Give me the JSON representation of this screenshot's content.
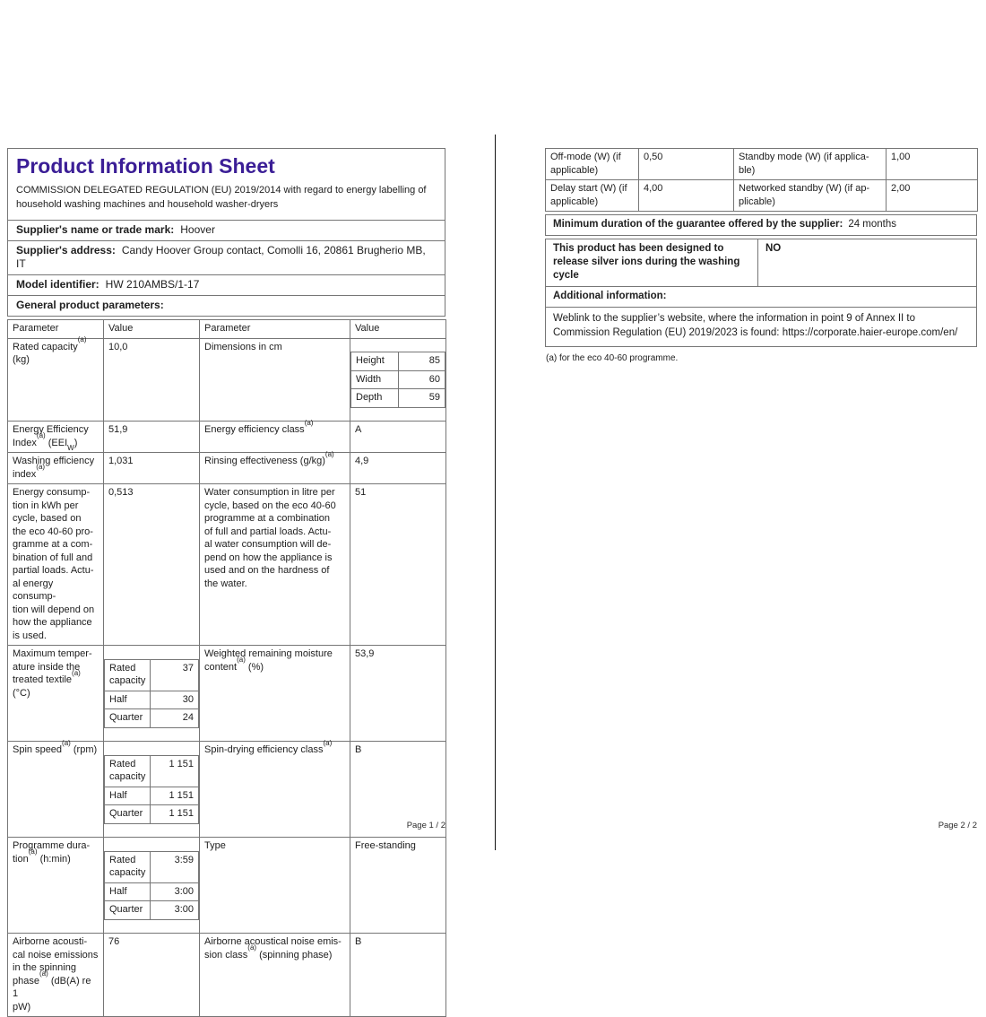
{
  "colors": {
    "title_accent": "#3b1e96",
    "table_border": "#767676",
    "sub_border": "#b0b0b0",
    "text": "#202020"
  },
  "page1": {
    "title": "Product Information Sheet",
    "regulation": [
      "COMMISSION DELEGATED REGULATION (EU) 2019/2014 with regard to energy labelling of",
      "household washing machines and household washer-dryers"
    ],
    "fields": {
      "supplier_name": {
        "label": "Supplier's name or trade mark:",
        "value": "Hoover"
      },
      "supplier_address": {
        "label": "Supplier's address:",
        "value": "Candy Hoover Group contact, Comolli 16, 20861 Brugherio MB, IT"
      },
      "model": {
        "label": "Model identifier:",
        "value": "HW 210AMBS/1-17"
      }
    },
    "general_label": "General product parameters:",
    "table": {
      "headers": [
        "Parameter",
        "Value",
        "Parameter",
        "Value"
      ],
      "rows": {
        "rated": {
          "p1": [
            "Rated capacity[sup](a)[/sup]",
            " (kg)"
          ],
          "v1": "10,0",
          "p2": "Dimensions in cm",
          "dims": [
            {
              "k": "Height",
              "v": "85"
            },
            {
              "k": "Width",
              "v": "60"
            },
            {
              "k": "Depth",
              "v": "59"
            }
          ]
        },
        "eei": {
          "p1": [
            "Energy Efficiency",
            "Index[sup](a)[/sup] (EEI[sub]W[/sub])"
          ],
          "v1": "51,9",
          "p2": "Energy efficiency class[sup](a)[/sup]",
          "v2": "A"
        },
        "washing": {
          "p1": [
            "Washing efficiency",
            "index[sup](a)[/sup]"
          ],
          "v1": "1,031",
          "p2": "Rinsing effectiveness (g/kg)[sup](a)[/sup]",
          "v2": "4,9"
        },
        "energy": {
          "p1": [
            "Energy consump-",
            "tion in kWh per",
            "cycle, based on",
            "the eco 40-60 pro-",
            "gramme at a com-",
            "bination of full and",
            "partial loads. Actu-",
            "al energy consump-",
            "tion will depend on",
            "how the appliance",
            "is used."
          ],
          "v1": "0,513",
          "p2": [
            "Water consumption in litre per",
            "cycle, based on the eco 40-60",
            "programme at a combination",
            "of full and partial loads. Actu-",
            "al water consumption will de-",
            "pend on how the appliance is",
            "used and on the hardness of",
            "the water."
          ],
          "v2": "51"
        },
        "maxtemp": {
          "p1": [
            "Maximum temper-",
            "ature inside the",
            "treated textile[sup](a)[/sup]",
            " (°C)"
          ],
          "sub": [
            {
              "k": "Rated capacity",
              "v": "37"
            },
            {
              "k": "Half",
              "v": "30"
            },
            {
              "k": "Quarter",
              "v": "24"
            }
          ],
          "p2": [
            "Weighted remaining moisture",
            "content[sup](a)[/sup]  (%)"
          ],
          "v2": "53,9"
        },
        "spin": {
          "p1": "Spin speed[sup](a)[/sup]  (rpm)",
          "sub": [
            {
              "k": "Rated capacity",
              "v": "1 151"
            },
            {
              "k": "Half",
              "v": "1 151"
            },
            {
              "k": "Quarter",
              "v": "1 151"
            }
          ],
          "p2": "Spin-drying efficiency class[sup](a)[/sup]",
          "v2": "B"
        },
        "duration": {
          "p1": [
            "Programme dura-",
            "tion[sup](a)[/sup]  (h:min)"
          ],
          "sub": [
            {
              "k": "Rated capacity",
              "v": "3:59"
            },
            {
              "k": "Half",
              "v": "3:00"
            },
            {
              "k": "Quarter",
              "v": "3:00"
            }
          ],
          "p2": "Type",
          "v2": "Free-standing"
        },
        "noise": {
          "p1": [
            "Airborne acousti-",
            "cal noise emissions",
            "in the spinning",
            "phase[sup](a)[/sup]  (dB(A) re 1",
            "pW)"
          ],
          "v1": "76",
          "p2": [
            "Airborne acoustical noise emis-",
            "sion class[sup](a)[/sup]  (spinning phase)"
          ],
          "v2": "B"
        }
      }
    },
    "footer": "Page 1 / 2"
  },
  "page2": {
    "rows": {
      "offmode": {
        "p1": [
          "Off-mode (W) (if",
          "applicable)"
        ],
        "v1": "0,50",
        "p2": [
          "Standby mode (W) (if applica-",
          "ble)"
        ],
        "v2": "1,00"
      },
      "delay": {
        "p1": [
          "Delay start (W) (if",
          "applicable)"
        ],
        "v1": "4,00",
        "p2": [
          "Networked standby (W) (if ap-",
          "plicable)"
        ],
        "v2": "2,00"
      }
    },
    "guarantee": {
      "label": "Minimum duration of the guarantee offered by the supplier:",
      "value": "24 months"
    },
    "silver": {
      "label": "This product has been designed to release silver ions during the washing cycle",
      "value": "NO"
    },
    "additional_label": "Additional information:",
    "weblink": "Weblink to the supplier’s website, where the information in point 9 of Annex II to Commission Regulation (EU) 2019/2023 is found:  https://corporate.haier-europe.com/en/",
    "footnote": "(a) for the eco 40-60 programme.",
    "footer": "Page 2 / 2"
  }
}
